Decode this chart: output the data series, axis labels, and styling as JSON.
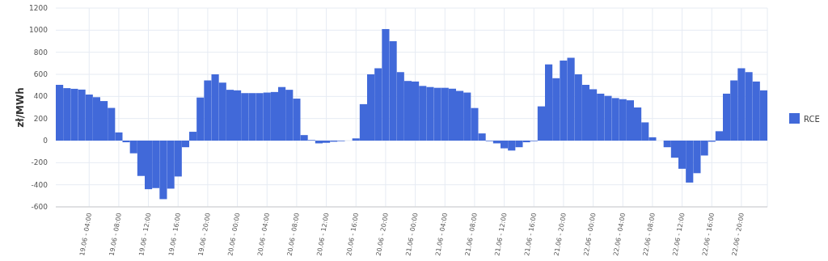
{
  "chart_data": {
    "type": "bar",
    "ylabel": "zł/MWh",
    "categories": [
      null,
      null,
      null,
      null,
      "19.06 - 04:00",
      null,
      null,
      null,
      "19.06 - 08:00",
      null,
      null,
      null,
      "19.06 - 12:00",
      null,
      null,
      null,
      "19.06 - 16:00",
      null,
      null,
      null,
      "19.06 - 20:00",
      null,
      null,
      null,
      "20.06 - 00:00",
      null,
      null,
      null,
      "20.06 - 04:00",
      null,
      null,
      null,
      "20.06 - 08:00",
      null,
      null,
      null,
      "20.06 - 12:00",
      null,
      null,
      null,
      "20.06 - 16:00",
      null,
      null,
      null,
      "20.06 - 20:00",
      null,
      null,
      null,
      "21.06 - 00:00",
      null,
      null,
      null,
      "21.06 - 04:00",
      null,
      null,
      null,
      "21.06 - 08:00",
      null,
      null,
      null,
      "21.06 - 12:00",
      null,
      null,
      null,
      "21.06 - 16:00",
      null,
      null,
      null,
      "21.06 - 20:00",
      null,
      null,
      null,
      "22.06 - 00:00",
      null,
      null,
      null,
      "22.06 - 04:00",
      null,
      null,
      null,
      "22.06 - 08:00",
      null,
      null,
      null,
      "22.06 - 12:00",
      null,
      null,
      null,
      "22.06 - 16:00",
      null,
      null,
      null,
      "22.06 - 20:00",
      null,
      null,
      null
    ],
    "series": [
      {
        "name": "RCE",
        "color": "#4169d9",
        "values": [
          505,
          475,
          469,
          462,
          417,
          393,
          358,
          296,
          74,
          -15,
          -115,
          -320,
          -440,
          -430,
          -530,
          -435,
          -325,
          -60,
          80,
          390,
          545,
          600,
          525,
          460,
          455,
          430,
          430,
          430,
          435,
          440,
          485,
          460,
          380,
          50,
          5,
          -25,
          -20,
          -10,
          -5,
          null,
          20,
          330,
          600,
          655,
          1010,
          900,
          620,
          540,
          535,
          495,
          485,
          478,
          478,
          470,
          450,
          435,
          295,
          65,
          -5,
          -25,
          -70,
          -90,
          -60,
          -15,
          -5,
          310,
          690,
          565,
          725,
          750,
          600,
          505,
          465,
          425,
          405,
          385,
          375,
          365,
          300,
          165,
          30,
          null,
          -60,
          -155,
          -255,
          -380,
          -295,
          -135,
          -10,
          85,
          425,
          545,
          655,
          620,
          535,
          455
        ]
      }
    ],
    "ylim": [
      -600,
      1200
    ],
    "yticks": [
      -600,
      -400,
      -200,
      0,
      200,
      400,
      600,
      800,
      1000,
      1200
    ],
    "grid": true,
    "legend": "right"
  }
}
